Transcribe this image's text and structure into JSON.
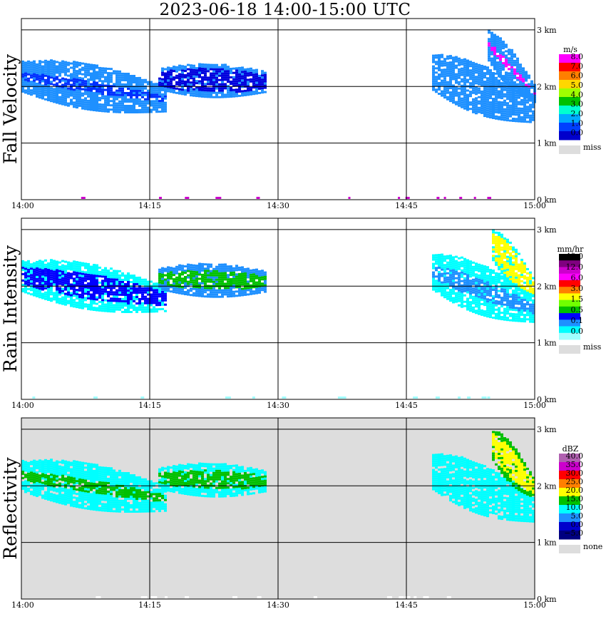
{
  "title": "2023-06-18   14:00-15:00 UTC",
  "chart_data": [
    {
      "type": "heatmap",
      "ylabel": "Fall Velocity",
      "x_ticks": [
        "14:00",
        "14:15",
        "14:30",
        "14:45",
        "15:00"
      ],
      "y_ticks": [
        "0 km",
        "1 km",
        "2 km",
        "3 km"
      ],
      "ylim_km": [
        0,
        3.2
      ],
      "legend": {
        "unit": "m/s",
        "labels": [
          "8.0",
          "7.0",
          "6.0",
          "5.0",
          "4.0",
          "3.0",
          "2.0",
          "1.0",
          "0.0"
        ],
        "colors": [
          "#ff00ff",
          "#ff0000",
          "#ff7f00",
          "#ffd700",
          "#a0ff00",
          "#00c000",
          "#00ffd0",
          "#00aaff",
          "#0040ff",
          "#0000cc"
        ],
        "missing_label": "miss",
        "missing_color": "#dddddd"
      },
      "background": "#ffffff",
      "echoes": [
        {
          "t0": 0,
          "t1": 17,
          "h_top": 2.65,
          "h_bot": 1.75,
          "slope": -0.03,
          "color": "#1e90ff",
          "core": "#0030ff",
          "core_frac": 0.15
        },
        {
          "t0": 16,
          "t1": 28.5,
          "h_top": 2.45,
          "h_bot": 1.85,
          "slope": -0.005,
          "color": "#1e90ff",
          "core": "#0000dd",
          "core_frac": 0.45
        },
        {
          "t0": 48,
          "t1": 60,
          "h_top": 2.8,
          "h_bot": 1.75,
          "slope": -0.07,
          "color": "#1e90ff",
          "core": "#1e90ff",
          "core_frac": 0
        },
        {
          "t0": 54.5,
          "t1": 60,
          "h_top": 3.2,
          "h_bot": 2.3,
          "slope": -0.2,
          "color": "#1e90ff",
          "core": "#ff00ff",
          "core_frac": 0.12
        }
      ]
    },
    {
      "type": "heatmap",
      "ylabel": "Rain Intensity",
      "x_ticks": [
        "14:00",
        "14:15",
        "14:30",
        "14:45",
        "15:00"
      ],
      "y_ticks": [
        "0 km",
        "1 km",
        "2 km",
        "3 km"
      ],
      "ylim_km": [
        0,
        3.2
      ],
      "legend": {
        "unit": "mm/hr",
        "labels": [
          "48.0",
          "12.0",
          "6.0",
          "3.0",
          "1.5",
          "0.5",
          "0.1",
          "0.0"
        ],
        "colors": [
          "#000000",
          "#800080",
          "#cc00cc",
          "#ff00ff",
          "#ff0000",
          "#ff7f00",
          "#ffff00",
          "#70ff00",
          "#00c000",
          "#0000ff",
          "#1e90ff",
          "#00ffff",
          "#a0ffff"
        ],
        "missing_label": "miss",
        "missing_color": "#dddddd"
      },
      "background": "#ffffff",
      "echoes": [
        {
          "t0": 0,
          "t1": 17,
          "h_top": 2.65,
          "h_bot": 1.75,
          "slope": -0.03,
          "color": "#00ffff",
          "core": "#0000ff",
          "core_frac": 0.35
        },
        {
          "t0": 16,
          "t1": 28.5,
          "h_top": 2.45,
          "h_bot": 1.85,
          "slope": -0.005,
          "color": "#1e90ff",
          "core": "#00c000",
          "core_frac": 0.35
        },
        {
          "t0": 48,
          "t1": 60,
          "h_top": 2.8,
          "h_bot": 1.75,
          "slope": -0.07,
          "color": "#00ffff",
          "core": "#1e90ff",
          "core_frac": 0.25
        },
        {
          "t0": 55,
          "t1": 60,
          "h_top": 3.2,
          "h_bot": 2.3,
          "slope": -0.2,
          "color": "#00ffff",
          "core": "#ffff00",
          "core_frac": 0.5
        }
      ]
    },
    {
      "type": "heatmap",
      "ylabel": "Reflectivity",
      "x_ticks": [
        "14:00",
        "14:15",
        "14:30",
        "14:45",
        "15:00"
      ],
      "y_ticks": [
        "0 km",
        "1 km",
        "2 km",
        "3 km"
      ],
      "ylim_km": [
        0,
        3.2
      ],
      "legend": {
        "unit": "dBZ",
        "labels": [
          "40.0",
          "35.0",
          "30.0",
          "25.0",
          "20.0",
          "15.0",
          "10.0",
          "5.0",
          "0.0",
          "−5.0"
        ],
        "colors": [
          "#b060b0",
          "#cc00cc",
          "#ff0000",
          "#ff7f00",
          "#ffff00",
          "#00c000",
          "#00ffff",
          "#1e90ff",
          "#0000cc",
          "#000080"
        ],
        "missing_label": "none",
        "missing_color": "#dddddd"
      },
      "background": "#dddddd",
      "echoes": [
        {
          "t0": 0,
          "t1": 17,
          "h_top": 2.65,
          "h_bot": 1.75,
          "slope": -0.03,
          "color": "#00ffff",
          "core": "#00c000",
          "core_frac": 0.18
        },
        {
          "t0": 16,
          "t1": 28.5,
          "h_top": 2.45,
          "h_bot": 1.85,
          "slope": -0.005,
          "color": "#00ffff",
          "core": "#00c000",
          "core_frac": 0.35
        },
        {
          "t0": 48,
          "t1": 60,
          "h_top": 2.8,
          "h_bot": 1.75,
          "slope": -0.07,
          "color": "#00ffff",
          "core": "#00ffff",
          "core_frac": 0
        },
        {
          "t0": 55,
          "t1": 60,
          "h_top": 3.2,
          "h_bot": 2.3,
          "slope": -0.2,
          "color": "#00c000",
          "core": "#ffff00",
          "core_frac": 0.45
        }
      ]
    }
  ]
}
